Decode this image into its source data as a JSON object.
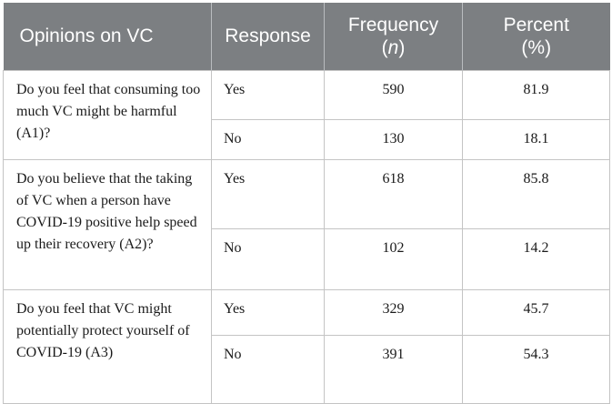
{
  "header": {
    "opinions": "Opinions on VC",
    "response": "Response",
    "frequency": "Frequency",
    "frequency_unit": "n",
    "percent": "Percent",
    "percent_unit": "(%)"
  },
  "rows": [
    {
      "question": "Do you feel that consuming too much VC might be harmful (A1)?",
      "answers": [
        {
          "response": "Yes",
          "frequency": "590",
          "percent": "81.9"
        },
        {
          "response": "No",
          "frequency": "130",
          "percent": "18.1"
        }
      ]
    },
    {
      "question": "Do you believe that the taking of VC when a person have COVID-19 positive help speed up their recovery (A2)?",
      "answers": [
        {
          "response": "Yes",
          "frequency": "618",
          "percent": "85.8"
        },
        {
          "response": "No",
          "frequency": "102",
          "percent": "14.2"
        }
      ]
    },
    {
      "question": "Do you feel that VC might potentially protect yourself of COVID-19 (A3)",
      "answers": [
        {
          "response": "Yes",
          "frequency": "329",
          "percent": "45.7"
        },
        {
          "response": "No",
          "frequency": "391",
          "percent": "54.3"
        }
      ]
    }
  ]
}
